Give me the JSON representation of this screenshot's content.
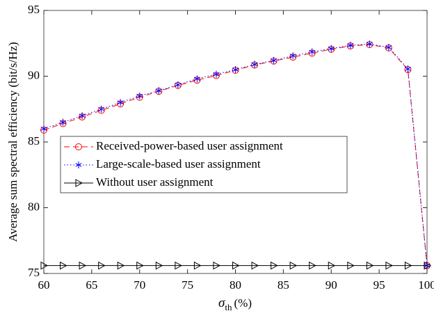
{
  "chart_data": {
    "type": "line",
    "ylabel": "Average sum spectral efficiency (bit/s/Hz)",
    "xlabel": {
      "symbol": "σ",
      "subscript": "th",
      "unit": "(%)"
    },
    "x": [
      60,
      62,
      64,
      66,
      68,
      70,
      72,
      74,
      76,
      78,
      80,
      82,
      84,
      86,
      88,
      90,
      92,
      94,
      96,
      98,
      100
    ],
    "series": [
      {
        "name": "Received-power-based user assignment",
        "color": "#ff0000",
        "dash": "8,5",
        "marker": "circle",
        "values": [
          85.9,
          86.4,
          86.9,
          87.4,
          87.9,
          88.4,
          88.85,
          89.3,
          89.7,
          90.05,
          90.45,
          90.85,
          91.15,
          91.45,
          91.75,
          92.05,
          92.3,
          92.4,
          92.15,
          90.5,
          75.6
        ]
      },
      {
        "name": "Large-scale-based user assignment",
        "color": "#0000ff",
        "dash": "1.5,3",
        "marker": "star",
        "values": [
          86.0,
          86.5,
          87.0,
          87.5,
          88.0,
          88.5,
          88.9,
          89.35,
          89.8,
          90.15,
          90.5,
          90.9,
          91.2,
          91.55,
          91.85,
          92.1,
          92.35,
          92.45,
          92.2,
          90.55,
          75.6
        ]
      },
      {
        "name": "Without user assignment",
        "color": "#000000",
        "dash": "none",
        "marker": "triangle-right",
        "values": [
          75.6,
          75.6,
          75.6,
          75.6,
          75.6,
          75.6,
          75.6,
          75.6,
          75.6,
          75.6,
          75.6,
          75.6,
          75.6,
          75.6,
          75.6,
          75.6,
          75.6,
          75.6,
          75.6,
          75.6,
          75.6
        ]
      }
    ],
    "xlim": [
      60,
      100
    ],
    "xticks": [
      60,
      65,
      70,
      75,
      80,
      85,
      90,
      95,
      100
    ],
    "ylim": [
      75,
      95
    ],
    "yticks": [
      75,
      80,
      85,
      90,
      95
    ],
    "grid": false,
    "legend": "west"
  }
}
